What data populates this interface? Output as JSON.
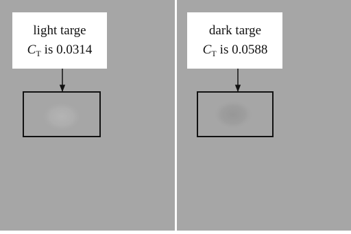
{
  "panels": [
    {
      "title": "light targe",
      "symbol": "C",
      "subscript": "T",
      "text": "is 0.0314"
    },
    {
      "title": "dark targe",
      "symbol": "C",
      "subscript": "T",
      "text": "is 0.0588"
    }
  ]
}
